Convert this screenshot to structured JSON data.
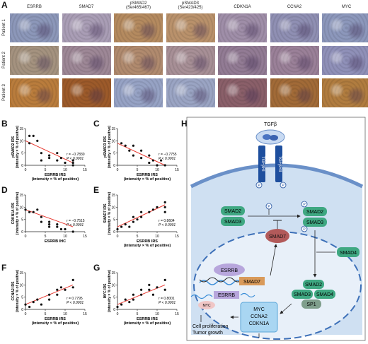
{
  "panel_labels": [
    "A",
    "B",
    "C",
    "D",
    "E",
    "F",
    "G",
    "H"
  ],
  "ihc": {
    "columns": [
      {
        "name": "ESRRB",
        "sub": ""
      },
      {
        "name": "SMAD7",
        "sub": ""
      },
      {
        "name": "pSMAD2",
        "sub": "(Ser465/467)"
      },
      {
        "name": "pSMAD3",
        "sub": "(Ser423/425)"
      },
      {
        "name": "CDKN1A",
        "sub": ""
      },
      {
        "name": "CCNA2",
        "sub": ""
      },
      {
        "name": "MYC",
        "sub": ""
      }
    ],
    "rows": [
      "Patient 1",
      "Patient 2",
      "Patient 3"
    ],
    "colors": [
      [
        "#8c97b9",
        "#a99db5",
        "#b48a5f",
        "#b9916b",
        "#9f8ea8",
        "#8f8fb3",
        "#8c97bb"
      ],
      [
        "#a4927f",
        "#9d8796",
        "#b08a6e",
        "#a78f96",
        "#927b94",
        "#9a8098",
        "#8f90b8"
      ],
      [
        "#b97c3c",
        "#9c5a2a",
        "#96a2c4",
        "#9aa4c3",
        "#8a5f69",
        "#a16a37",
        "#b07c3f"
      ]
    ]
  },
  "chart_data": [
    {
      "panel": "B",
      "type": "scatter",
      "xlabel": "ESRRB IRS",
      "xlabel2": "(intensity × % of positive)",
      "ylabel": "pSMAD2 IRS",
      "ylabel2": "(intensity × % of positive)",
      "xlim": [
        0,
        15
      ],
      "ylim": [
        0,
        15
      ],
      "xticks": [
        0,
        5,
        10,
        15
      ],
      "yticks": [
        0,
        5,
        10,
        15
      ],
      "stat_r": "r = −0.7830",
      "stat_p": "P < 0.0001",
      "points": [
        [
          1,
          12
        ],
        [
          1,
          9
        ],
        [
          2,
          12
        ],
        [
          3,
          10
        ],
        [
          4,
          5
        ],
        [
          4,
          2
        ],
        [
          6,
          4
        ],
        [
          6,
          3
        ],
        [
          8,
          5
        ],
        [
          8,
          2
        ],
        [
          9,
          3
        ],
        [
          10,
          1
        ],
        [
          12,
          2
        ],
        [
          12,
          1
        ],
        [
          12,
          0
        ]
      ],
      "fit": [
        [
          0,
          10
        ],
        [
          12,
          1
        ]
      ]
    },
    {
      "panel": "C",
      "type": "scatter",
      "xlabel": "ESRRB IRS",
      "xlabel2": "(intensity × % of positive)",
      "ylabel": "pSMAD3 IRS",
      "ylabel2": "(intensity × % of positive)",
      "xlim": [
        0,
        15
      ],
      "ylim": [
        0,
        15
      ],
      "xticks": [
        0,
        5,
        10,
        15
      ],
      "yticks": [
        0,
        5,
        10,
        15
      ],
      "stat_r": "r = −0.7755",
      "stat_p": "P < 0.0001",
      "points": [
        [
          1,
          9
        ],
        [
          2,
          8
        ],
        [
          3,
          6
        ],
        [
          4,
          8
        ],
        [
          4,
          4
        ],
        [
          6,
          6
        ],
        [
          6,
          3
        ],
        [
          8,
          4
        ],
        [
          8,
          1
        ],
        [
          9,
          2
        ],
        [
          10,
          0
        ],
        [
          11,
          2
        ],
        [
          12,
          0
        ]
      ],
      "fit": [
        [
          0,
          9
        ],
        [
          12,
          0
        ]
      ]
    },
    {
      "panel": "D",
      "type": "scatter",
      "xlabel": "ESRRB IHC",
      "xlabel2": "",
      "ylabel": "CDKN1A IRS",
      "ylabel2": "(intensity × % of positive)",
      "xlim": [
        0,
        15
      ],
      "ylim": [
        0,
        15
      ],
      "xticks": [
        0,
        5,
        10,
        15
      ],
      "yticks": [
        0,
        5,
        10,
        15
      ],
      "stat_r": "r = −0.7515",
      "stat_p": "P < 0.0001",
      "points": [
        [
          0,
          9
        ],
        [
          1,
          8
        ],
        [
          2,
          8
        ],
        [
          3,
          9
        ],
        [
          4,
          6
        ],
        [
          4,
          4
        ],
        [
          6,
          4
        ],
        [
          6,
          3
        ],
        [
          6,
          2
        ],
        [
          8,
          3
        ],
        [
          8,
          2
        ],
        [
          9,
          1
        ],
        [
          10,
          1
        ],
        [
          12,
          0
        ]
      ],
      "fit": [
        [
          0,
          9
        ],
        [
          12,
          2
        ]
      ]
    },
    {
      "panel": "E",
      "type": "scatter",
      "xlabel": "ESRRB IRS",
      "xlabel2": "(intensity × % of positive)",
      "ylabel": "SMAD7 IRS",
      "ylabel2": "(intensity × % of positive)",
      "xlim": [
        0,
        15
      ],
      "ylim": [
        0,
        15
      ],
      "xticks": [
        0,
        5,
        10,
        15
      ],
      "yticks": [
        0,
        5,
        10,
        15
      ],
      "stat_r": "r = 0.8604",
      "stat_p": "P < 0.0001",
      "points": [
        [
          0,
          1
        ],
        [
          1,
          2
        ],
        [
          2,
          3
        ],
        [
          3,
          2
        ],
        [
          4,
          4
        ],
        [
          4,
          6
        ],
        [
          5,
          5
        ],
        [
          6,
          8
        ],
        [
          6,
          6
        ],
        [
          8,
          8
        ],
        [
          9,
          9
        ],
        [
          10,
          10
        ],
        [
          12,
          10
        ],
        [
          12,
          12
        ],
        [
          12,
          8
        ]
      ],
      "fit": [
        [
          0,
          2
        ],
        [
          12,
          11
        ]
      ]
    },
    {
      "panel": "F",
      "type": "scatter",
      "xlabel": "ESRRB IRS",
      "xlabel2": "(intensity × % of positive)",
      "ylabel": "CCNA2 IRS",
      "ylabel2": "(intensity × % of positive)",
      "xlim": [
        0,
        15
      ],
      "ylim": [
        0,
        15
      ],
      "xticks": [
        0,
        5,
        10,
        15
      ],
      "yticks": [
        0,
        5,
        10,
        15
      ],
      "stat_r": "r = 0.7795",
      "stat_p": "P < 0.0001",
      "points": [
        [
          0,
          2
        ],
        [
          1,
          1
        ],
        [
          2,
          3
        ],
        [
          3,
          4
        ],
        [
          4,
          2
        ],
        [
          6,
          6
        ],
        [
          6,
          4
        ],
        [
          8,
          8
        ],
        [
          8,
          6
        ],
        [
          9,
          9
        ],
        [
          10,
          8
        ],
        [
          12,
          12
        ],
        [
          12,
          9
        ]
      ],
      "fit": [
        [
          0,
          2
        ],
        [
          12,
          10
        ]
      ]
    },
    {
      "panel": "G",
      "type": "scatter",
      "xlabel": "ESRRB IRS",
      "xlabel2": "(intensity × % of positive)",
      "ylabel": "MYC IRS",
      "ylabel2": "(intensity × % of positive)",
      "xlim": [
        0,
        15
      ],
      "ylim": [
        0,
        15
      ],
      "xticks": [
        0,
        5,
        10,
        15
      ],
      "yticks": [
        0,
        5,
        10,
        15
      ],
      "stat_r": "r = 0.8001",
      "stat_p": "P < 0.0001",
      "points": [
        [
          0,
          1
        ],
        [
          1,
          2
        ],
        [
          2,
          4
        ],
        [
          3,
          3
        ],
        [
          4,
          6
        ],
        [
          4,
          4
        ],
        [
          6,
          6
        ],
        [
          6,
          8
        ],
        [
          8,
          8
        ],
        [
          8,
          10
        ],
        [
          9,
          6
        ],
        [
          10,
          9
        ],
        [
          12,
          12
        ],
        [
          12,
          8
        ]
      ],
      "fit": [
        [
          0,
          2
        ],
        [
          12,
          10
        ]
      ]
    }
  ],
  "pathway": {
    "tgfb": "TGFβ",
    "tgfbr1": "TGFβRI",
    "tgfbr2": "TGFβRII",
    "smad2a": "SMAD2",
    "smad3a": "SMAD3",
    "smad2b": "SMAD2",
    "smad3b": "SMAD3",
    "smad7a": "SMAD7",
    "smad4a": "SMAD4",
    "esrrb1": "ESRRB",
    "smad7b": "SMAD7",
    "esrrb2": "ESRRB",
    "myc_small": "MYC",
    "smad2c": "SMAD2",
    "smad3c": "SMAD3",
    "smad4b": "SMAD4",
    "sp1": "SP1",
    "genes": [
      "MYC",
      "CCNA2",
      "CDKN1A"
    ],
    "p": "P",
    "outcome1": "Cell proliferation",
    "outcome2": "Tumor growth"
  }
}
